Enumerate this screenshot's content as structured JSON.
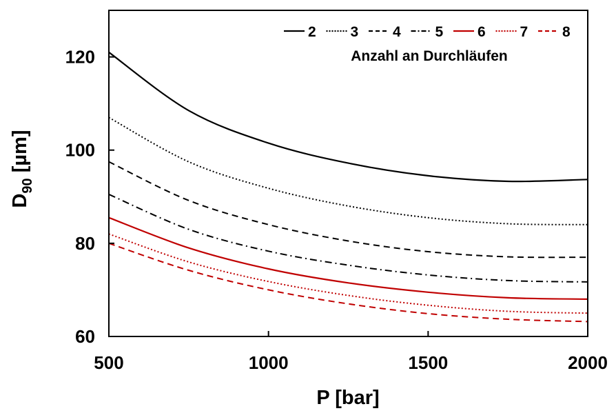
{
  "chart_data": {
    "type": "line",
    "xlabel": "P [bar]",
    "ylabel": {
      "main": "D",
      "sub": "90",
      "unit": " [µm]"
    },
    "xlim": [
      500,
      2000
    ],
    "ylim": [
      60,
      130
    ],
    "xticks": [
      500,
      1000,
      1500,
      2000
    ],
    "yticks": [
      60,
      80,
      100,
      120
    ],
    "grid": false,
    "legend": {
      "title": "Anzahl an Durchläufen",
      "placement": "top-right"
    },
    "x": [
      500,
      750,
      1000,
      1250,
      1500,
      1750,
      2000
    ],
    "series": [
      {
        "name": "2",
        "color": "#000000",
        "dash": "solid",
        "values": [
          121,
          108.5,
          101.5,
          97.2,
          94.5,
          93.3,
          93.7
        ]
      },
      {
        "name": "3",
        "color": "#000000",
        "dash": "dotted",
        "values": [
          107,
          97.5,
          91.8,
          88.0,
          85.5,
          84.2,
          84.0
        ]
      },
      {
        "name": "4",
        "color": "#000000",
        "dash": "dashed",
        "values": [
          97.5,
          89.2,
          84.0,
          80.5,
          78.2,
          77.1,
          77.0
        ]
      },
      {
        "name": "5",
        "color": "#000000",
        "dash": "dashdot",
        "values": [
          90.5,
          83.0,
          78.3,
          75.3,
          73.2,
          72.0,
          71.7
        ]
      },
      {
        "name": "6",
        "color": "#c00000",
        "dash": "solid",
        "values": [
          85.5,
          79.0,
          74.5,
          71.5,
          69.5,
          68.3,
          68.0
        ]
      },
      {
        "name": "7",
        "color": "#c00000",
        "dash": "dotted",
        "values": [
          82.0,
          76.0,
          71.8,
          68.8,
          66.7,
          65.4,
          65.0
        ]
      },
      {
        "name": "8",
        "color": "#c00000",
        "dash": "dashed",
        "values": [
          80.0,
          74.2,
          70.0,
          67.0,
          64.9,
          63.7,
          63.2
        ]
      }
    ]
  }
}
